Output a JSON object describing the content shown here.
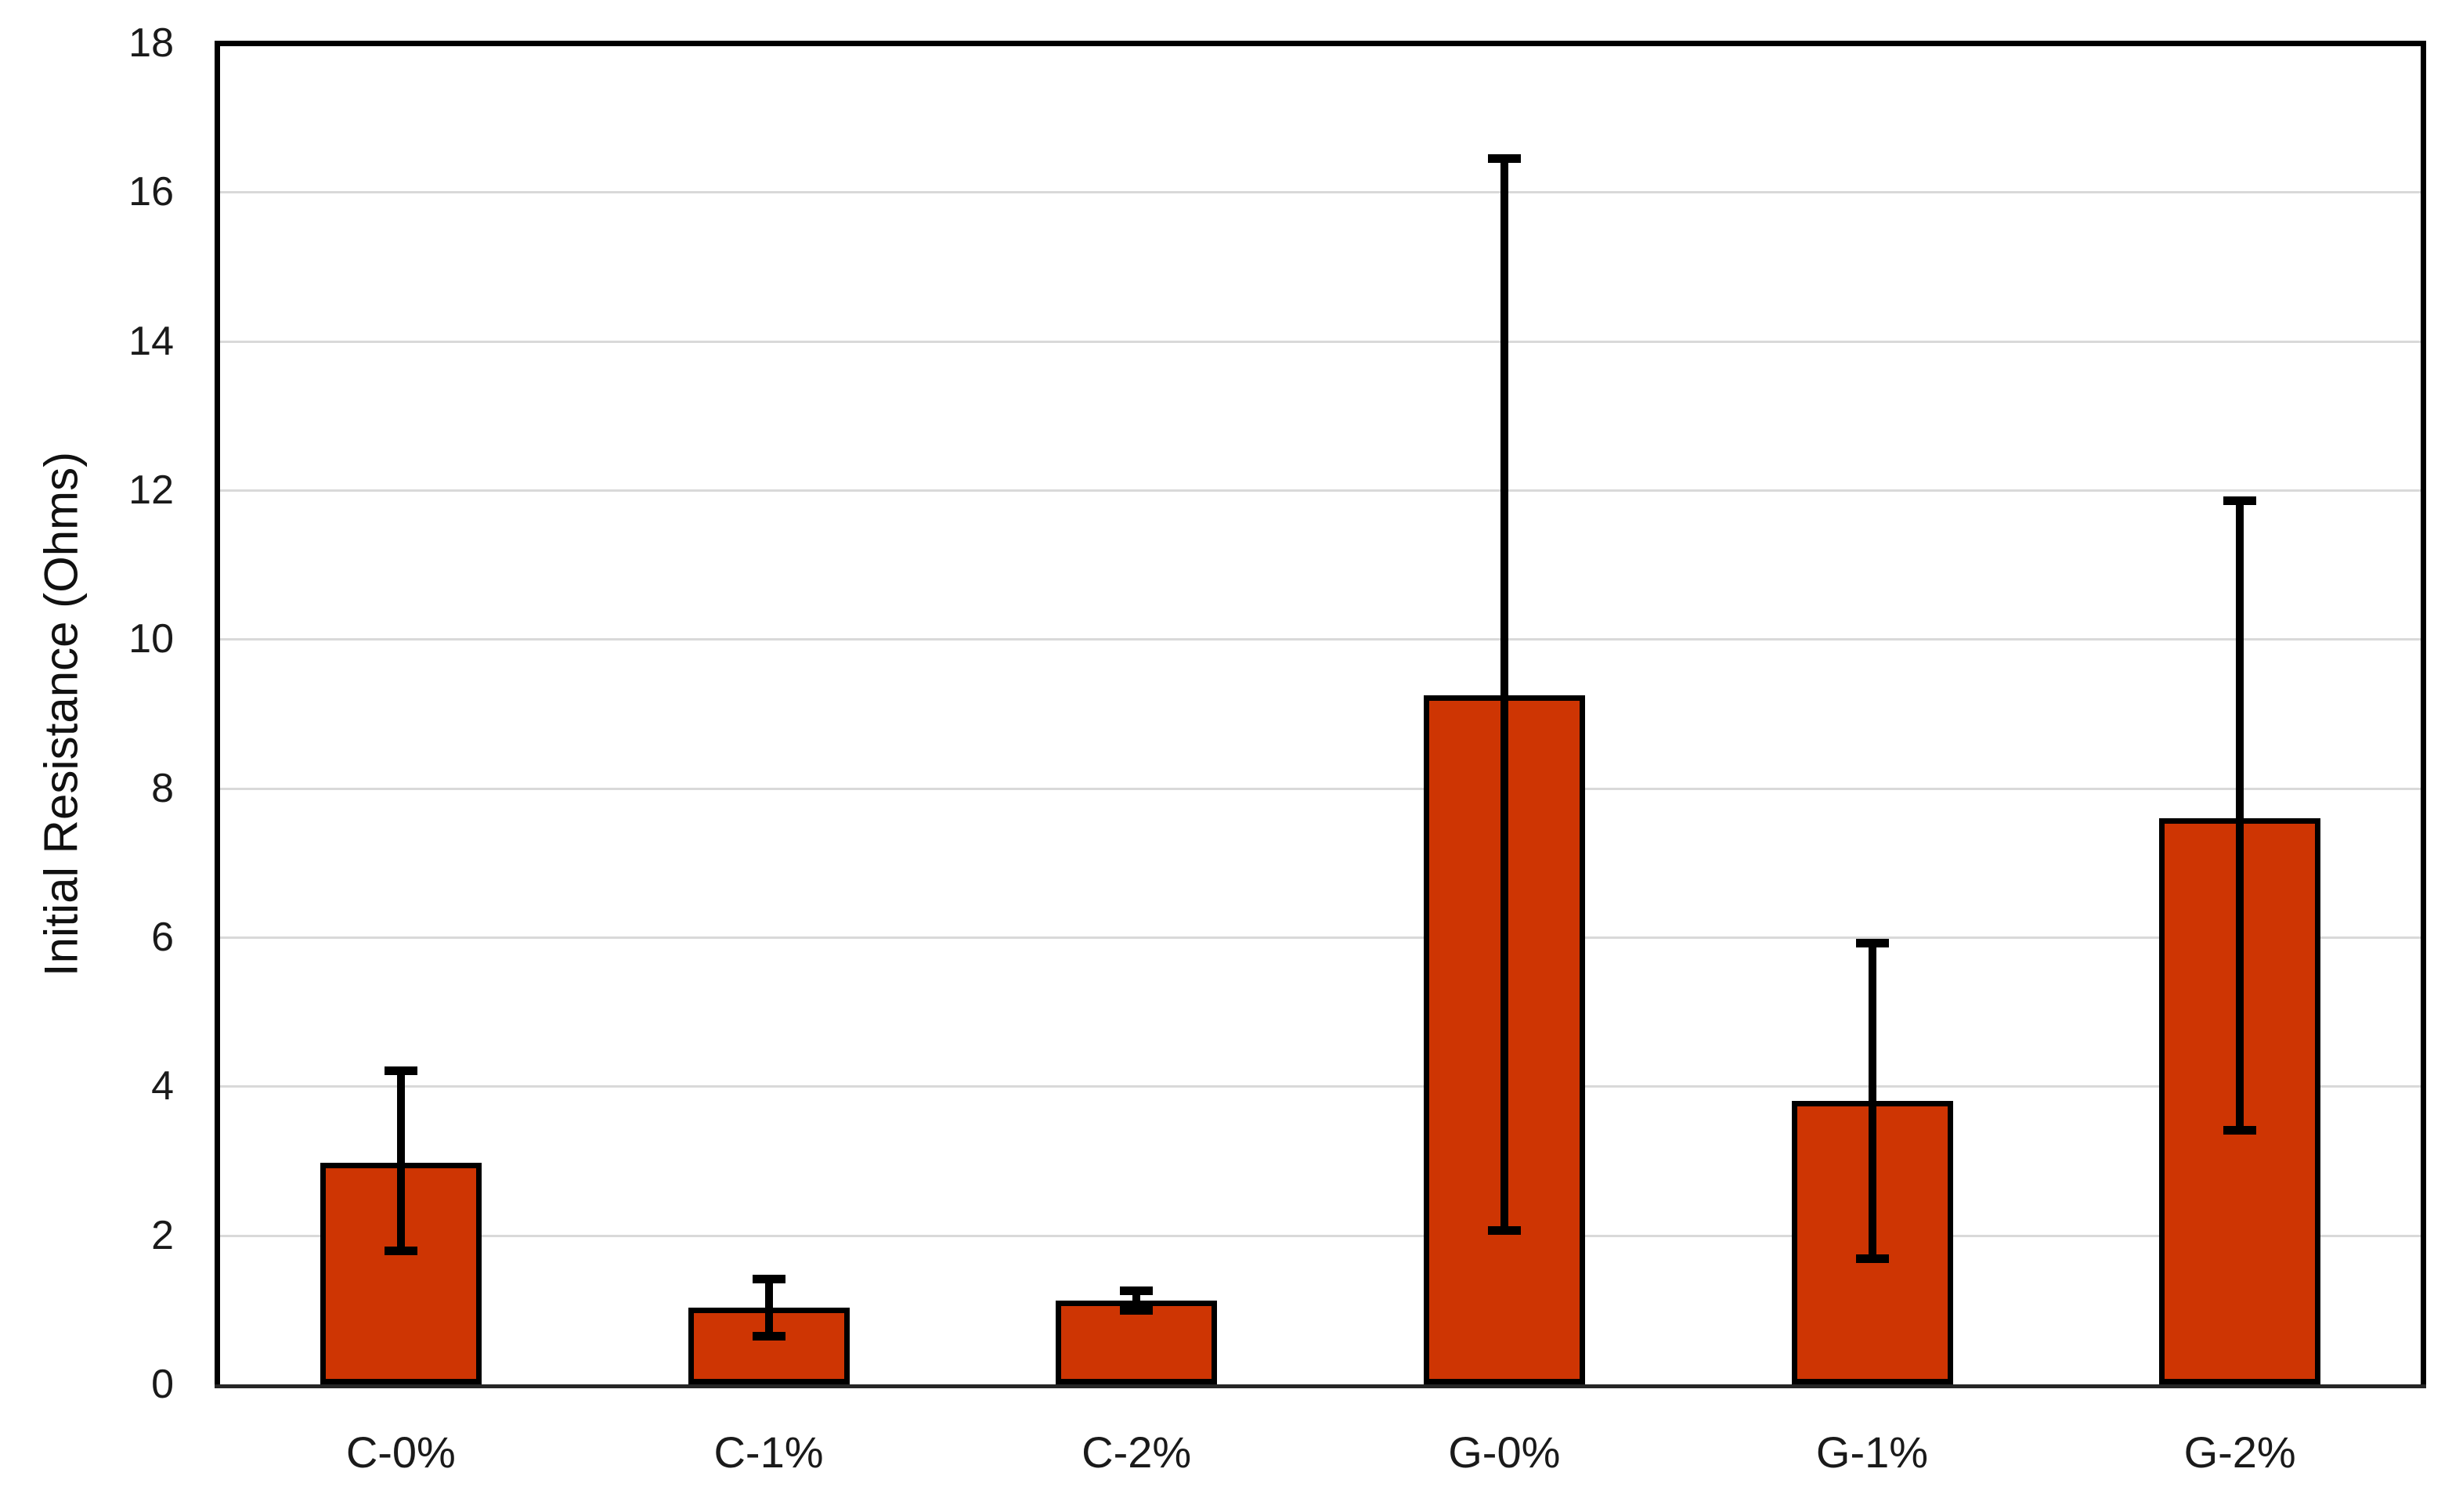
{
  "chart_data": {
    "type": "bar",
    "title": "",
    "xlabel": "",
    "ylabel": "Initial Resistance (Ohms)",
    "ylim": [
      0,
      18
    ],
    "ytick_step": 2,
    "yticks": [
      0,
      2,
      4,
      6,
      8,
      10,
      12,
      14,
      16,
      18
    ],
    "grid": true,
    "legend": "none",
    "categories": [
      "C-0%",
      "C-1%",
      "C-2%",
      "G-0%",
      "G-1%",
      "G-2%"
    ],
    "series": [
      {
        "name": "Initial Resistance",
        "values": [
          2.97,
          1.03,
          1.12,
          9.25,
          3.8,
          7.6
        ],
        "error_upper": [
          4.21,
          1.41,
          1.26,
          16.45,
          5.92,
          11.86
        ],
        "error_lower": [
          1.79,
          0.65,
          0.99,
          2.06,
          1.69,
          3.41
        ]
      }
    ],
    "colors": {
      "bar_fill": "#CE3503",
      "bar_border": "#000000",
      "error_bar": "#000000",
      "gridline": "#D9D9D9",
      "plot_border": "#000000",
      "x_axis_line": "#262626",
      "background": "#FFFFFF",
      "text": "#1A1A1A"
    }
  }
}
